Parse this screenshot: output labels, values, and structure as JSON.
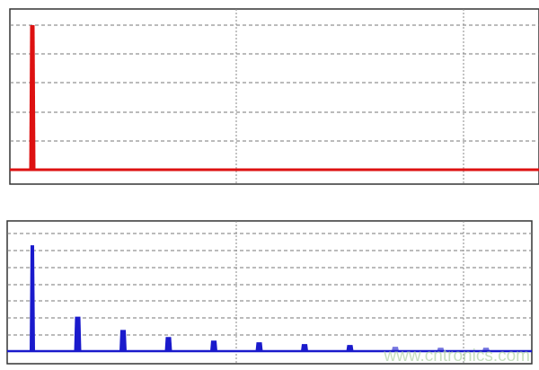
{
  "chart_data": [
    {
      "type": "bar",
      "title": "",
      "xlabel": "",
      "ylabel": "",
      "x": [
        1
      ],
      "values": [
        5
      ],
      "xlim": [
        0.5,
        12.2
      ],
      "ylim": [
        0,
        5.2
      ],
      "grid": true,
      "color": "#dd1111"
    },
    {
      "type": "bar",
      "title": "",
      "xlabel": "",
      "ylabel": "",
      "x": [
        1,
        2,
        3,
        4,
        5,
        6,
        7,
        8,
        9,
        10,
        11
      ],
      "values": [
        6.3,
        2.05,
        1.26,
        0.84,
        0.63,
        0.53,
        0.42,
        0.37,
        0.26,
        0.21,
        0.21
      ],
      "xlim": [
        0.5,
        12.2
      ],
      "ylim": [
        -0.7,
        7.5
      ],
      "grid": true,
      "color": "#1a1acc"
    }
  ],
  "watermark": "www.cntronics.com"
}
